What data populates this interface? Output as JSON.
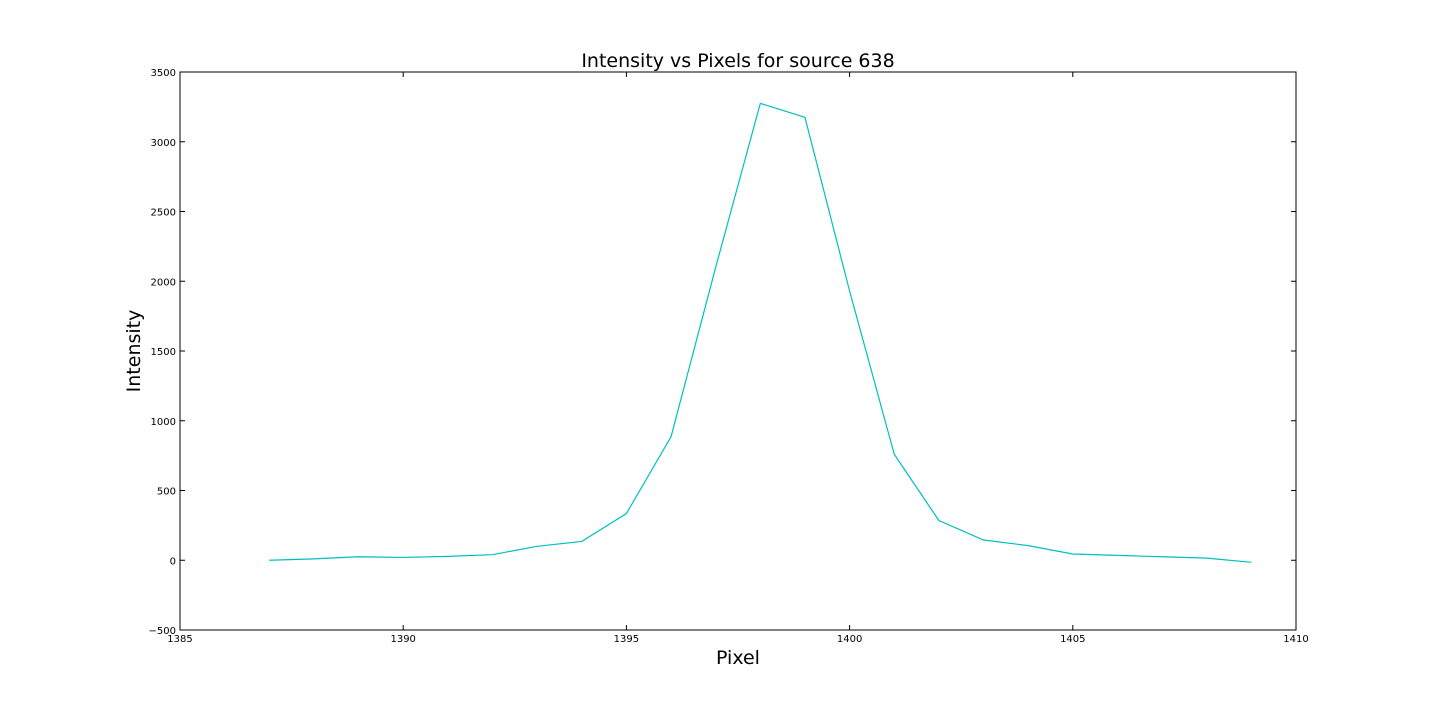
{
  "chart_data": {
    "type": "line",
    "title": "Intensity vs Pixels for source 638",
    "xlabel": "Pixel",
    "ylabel": "Intensity",
    "xlim": [
      1385,
      1410
    ],
    "ylim": [
      -500,
      3500
    ],
    "xticks": [
      1385,
      1390,
      1395,
      1400,
      1405,
      1410
    ],
    "yticks": [
      -500,
      0,
      500,
      1000,
      1500,
      2000,
      2500,
      3000,
      3500
    ],
    "grid": false,
    "series": [
      {
        "color": "#00bfbf",
        "x": [
          1387,
          1388,
          1389,
          1390,
          1391,
          1392,
          1393,
          1394,
          1395,
          1396,
          1397,
          1398,
          1399,
          1400,
          1401,
          1402,
          1403,
          1404,
          1405,
          1406,
          1407,
          1408,
          1409
        ],
        "y": [
          0,
          10,
          25,
          20,
          28,
          40,
          100,
          135,
          335,
          885,
          2100,
          3275,
          3175,
          1930,
          760,
          285,
          145,
          105,
          45,
          35,
          25,
          15,
          -15
        ]
      }
    ]
  }
}
